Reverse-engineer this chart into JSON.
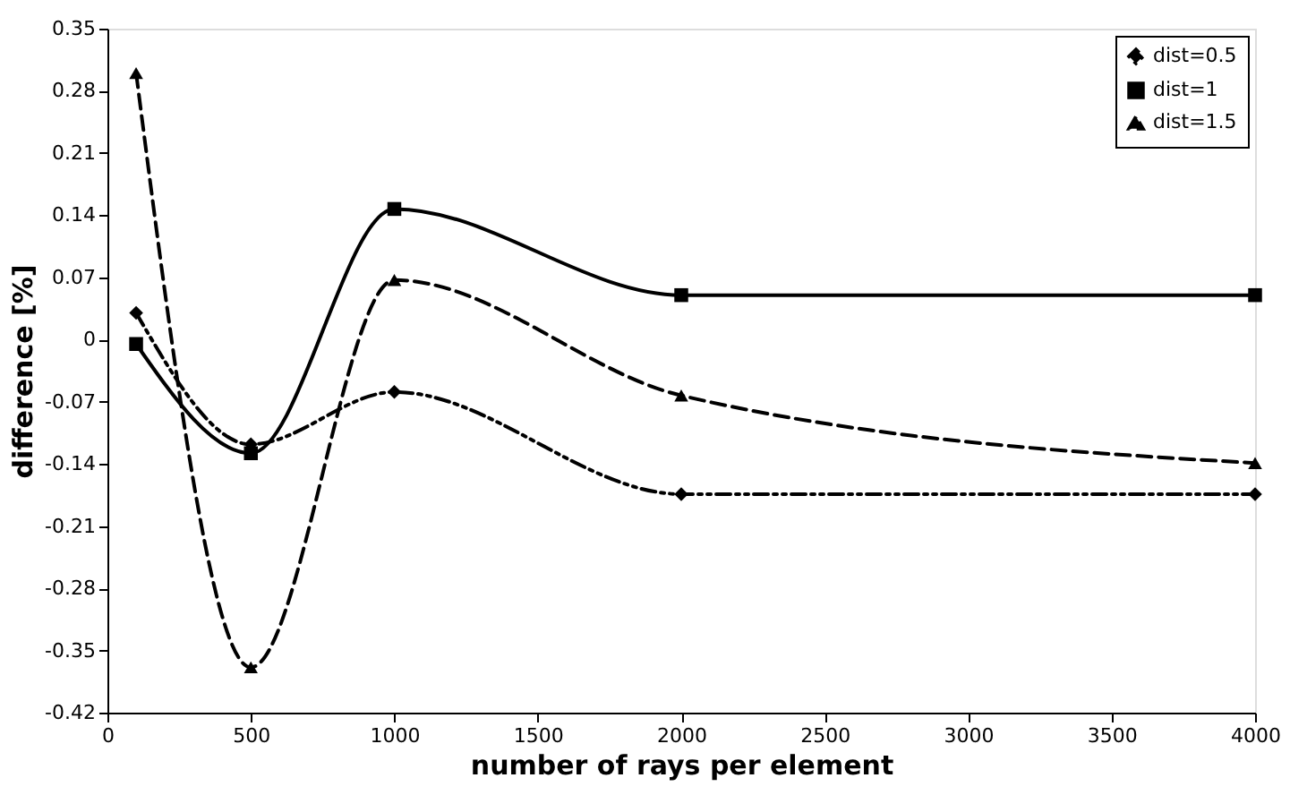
{
  "chart_data": {
    "type": "line",
    "xlabel": "number of rays per element",
    "ylabel": "difference [%]",
    "x": [
      100,
      500,
      1000,
      2000,
      4000
    ],
    "series": [
      {
        "name": "dist=0.5",
        "color": "#000000",
        "values": [
          0.03,
          -0.118,
          -0.059,
          -0.174,
          -0.174
        ],
        "marker": "diamond",
        "line_style": "dotted"
      },
      {
        "name": "dist=1",
        "color": "#000000",
        "values": [
          -0.005,
          -0.128,
          0.147,
          0.05,
          0.05
        ],
        "marker": "square",
        "line_style": "solid"
      },
      {
        "name": "dist=1.5",
        "color": "#000000",
        "values": [
          0.3,
          -0.369,
          0.067,
          -0.063,
          -0.139
        ],
        "marker": "triangle",
        "line_style": "dashed"
      }
    ],
    "xlim": [
      0,
      4000
    ],
    "xticks": [
      0,
      500,
      1000,
      1500,
      2000,
      2500,
      3000,
      3500,
      4000
    ],
    "ylim": [
      -0.42,
      0.35
    ],
    "yticks": [
      -0.42,
      -0.35,
      -0.28,
      -0.21,
      -0.14,
      -0.07,
      0,
      0.07,
      0.14,
      0.21,
      0.28,
      0.35
    ],
    "grid": false,
    "legend": "top right"
  }
}
